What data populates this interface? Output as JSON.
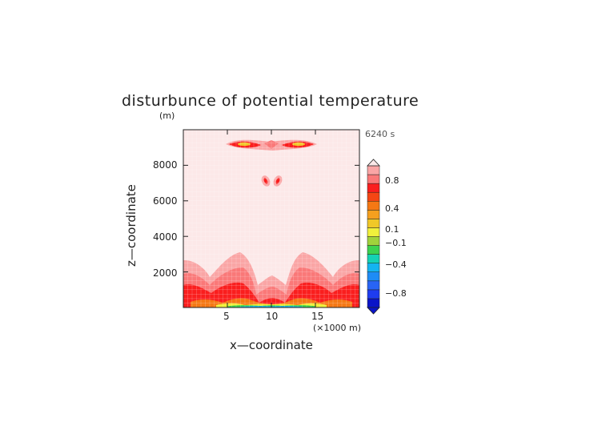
{
  "chart_data": {
    "type": "heatmap",
    "title": "disturbunce of potential temperature",
    "time_label": "6240 s",
    "xlabel": "x—coordinate",
    "ylabel": "z—coordinate",
    "x_unit": "(×1000 m)",
    "y_unit": "(m)",
    "xlim": [
      0,
      20
    ],
    "ylim": [
      0,
      10000
    ],
    "x_ticks": [
      5,
      10,
      15
    ],
    "x_tick_labels": [
      "5",
      "10",
      "15"
    ],
    "y_ticks": [
      2000,
      4000,
      6000,
      8000
    ],
    "y_tick_labels": [
      "2000",
      "4000",
      "6000",
      "8000"
    ],
    "colorbar": {
      "levels": [
        -1.0,
        -0.8,
        -0.6,
        -0.4,
        -0.3,
        -0.2,
        -0.1,
        -0.05,
        0,
        0.05,
        0.1,
        0.2,
        0.3,
        0.4,
        0.6,
        0.8,
        1.0
      ],
      "colors": [
        "#0a14c8",
        "#1e3cf0",
        "#2864f5",
        "#1e8cf5",
        "#14b4f0",
        "#14d2b4",
        "#3cd250",
        "#a0d23c",
        "#f0f03c",
        "#f0c828",
        "#f5a01e",
        "#f57814",
        "#f54614",
        "#fa1e1e",
        "#fa7878",
        "#faa5a5"
      ],
      "tick_values": [
        0.8,
        0.4,
        0.1,
        -0.1,
        -0.4,
        -0.8
      ],
      "tick_labels": [
        "0.8",
        "0.4",
        "0.1",
        "−0.1",
        "−0.4",
        "−0.8"
      ],
      "extend": "both"
    },
    "background_color": "#fce8e8",
    "features": [
      {
        "region": "upper layer near z≈9200 m",
        "value_range": [
          0.2,
          0.8
        ]
      },
      {
        "region": "small patches near z≈7000 m, x≈10 km",
        "value_range": [
          0.4,
          1.0
        ]
      },
      {
        "region": "lower boundary layer, z<2800 m",
        "value_range": [
          0.05,
          1.0
        ]
      },
      {
        "region": "surface near x≈5–15 km",
        "value_range": [
          -0.6,
          0.2
        ]
      }
    ]
  }
}
